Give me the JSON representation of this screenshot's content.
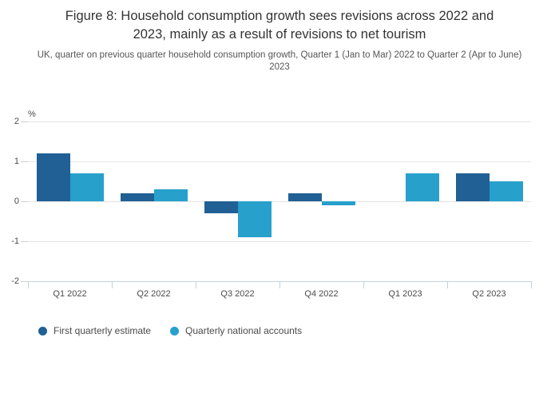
{
  "header": {
    "title": "Figure 8: Household consumption growth sees revisions across 2022 and 2023, mainly as a result of revisions to net tourism",
    "subtitle": "UK, quarter on previous quarter household consumption growth, Quarter 1 (Jan to Mar) 2022 to Quarter 2 (Apr to June) 2023"
  },
  "chart_data": {
    "type": "bar",
    "title": "Figure 8: Household consumption growth sees revisions across 2022 and 2023, mainly as a result of revisions to net tourism",
    "subtitle": "UK, quarter on previous quarter household consumption growth, Quarter 1 (Jan to Mar) 2022 to Quarter 2 (Apr to June) 2023",
    "unit_label": "%",
    "categories": [
      "Q1 2022",
      "Q2 2022",
      "Q3 2022",
      "Q4 2022",
      "Q1 2023",
      "Q2 2023"
    ],
    "series": [
      {
        "name": "First quarterly estimate",
        "color": "#206095",
        "values": [
          1.2,
          0.2,
          -0.3,
          0.2,
          0,
          0.7
        ]
      },
      {
        "name": "Quarterly national accounts",
        "color": "#27a0cc",
        "values": [
          0.7,
          0.3,
          -0.9,
          -0.1,
          0.7,
          0.5
        ]
      }
    ],
    "xlabel": "",
    "ylabel": "%",
    "ylim": [
      -2,
      2
    ],
    "yticks": [
      2,
      1,
      0,
      -1,
      -2
    ],
    "grid": true,
    "legend_position": "bottom",
    "colors": {
      "first_estimate": "#206095",
      "national_accounts": "#27a0cc",
      "gridline": "#e4e4e4",
      "axis_line": "#c2d2de"
    }
  }
}
